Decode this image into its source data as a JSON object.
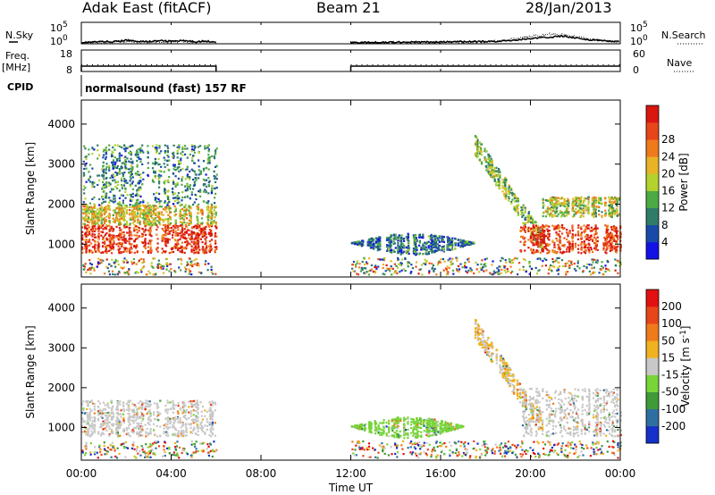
{
  "header": {
    "station": "Adak East (fitACF)",
    "beam": "Beam 21",
    "date": "28/Jan/2013"
  },
  "chart_data": [
    {
      "type": "line",
      "panel": "noise",
      "left_label": "N.Sky",
      "right_label": "N.Search",
      "left_ticks": [
        "10^5",
        "10^0"
      ],
      "right_ticks": [
        "10^5",
        "10^0"
      ],
      "ylim_log10": [
        0,
        5
      ],
      "x": [
        "00:00",
        "00:30",
        "01:00",
        "01:30",
        "02:00",
        "02:30",
        "03:00",
        "03:30",
        "04:00",
        "04:30",
        "05:00",
        "05:30",
        "06:00",
        "12:00",
        "13:00",
        "14:00",
        "15:00",
        "16:00",
        "17:00",
        "18:00",
        "19:00",
        "20:00",
        "20:30",
        "21:00",
        "21:30",
        "22:00",
        "22:30",
        "23:00",
        "23:30",
        "24:00"
      ],
      "series": [
        {
          "style": "solid",
          "values_log10": [
            0.3,
            0.4,
            0.5,
            0.5,
            0.8,
            0.6,
            0.5,
            0.7,
            0.6,
            0.7,
            0.5,
            0.6,
            0.5,
            0.3,
            0.3,
            0.4,
            0.4,
            0.4,
            0.5,
            0.5,
            0.7,
            1.2,
            1.4,
            1.6,
            1.8,
            1.4,
            1.0,
            0.8,
            0.6,
            0.5
          ]
        },
        {
          "style": "dotted",
          "values_log10": [
            0.2,
            0.3,
            0.3,
            0.3,
            0.6,
            0.4,
            0.3,
            0.5,
            0.4,
            0.5,
            0.3,
            0.4,
            0.3,
            0.2,
            0.2,
            0.3,
            0.3,
            0.3,
            0.3,
            0.4,
            0.9,
            1.7,
            2.0,
            2.3,
            2.0,
            1.6,
            1.2,
            0.8,
            0.5,
            0.4
          ]
        }
      ]
    },
    {
      "type": "line",
      "panel": "frequency",
      "left_label": "Freq.",
      "left_unit": "[MHz]",
      "right_label": "Nave",
      "left_ticks": [
        "18",
        "8"
      ],
      "right_ticks": [
        "60",
        "0"
      ],
      "ylim": [
        8,
        18
      ],
      "x_segments": [
        [
          "00:00",
          "06:00"
        ],
        [
          "12:00",
          "24:00"
        ]
      ],
      "freq_mhz": 10.5,
      "nave_dotted_value": 0
    },
    {
      "type": "table",
      "panel": "cpid",
      "label": "CPID",
      "text": "normalsound (fast) 157 RF"
    },
    {
      "type": "heatmap",
      "panel": "power",
      "ylabel": "Slant Range [km]",
      "yticks": [
        1000,
        2000,
        3000,
        4000
      ],
      "ylim": [
        180,
        4600
      ],
      "colorbar_label": "Power [dB]",
      "colorbar_ticks": [
        "4",
        "8",
        "12",
        "16",
        "20",
        "24",
        "28"
      ],
      "colorbar_colors": [
        "#1212e6",
        "#1a4aa8",
        "#2f7c68",
        "#4caa45",
        "#b3d22e",
        "#e8b426",
        "#ef7a1c",
        "#e8451b",
        "#d9160f"
      ],
      "clim": [
        0,
        32
      ],
      "data_gaps": [
        [
          "06:00",
          "12:00"
        ]
      ],
      "features": [
        {
          "name": "ground-scatter",
          "t": [
            0.0,
            6.0
          ],
          "range_km": [
            800,
            1500
          ],
          "power_db": 28
        },
        {
          "name": "near-range-echoes",
          "t": [
            0.0,
            6.0
          ],
          "range_km": [
            1500,
            2000
          ],
          "power_db": 18
        },
        {
          "name": "ionospheric-scatter",
          "t": [
            0.0,
            6.0
          ],
          "range_km": [
            2000,
            3500
          ],
          "power_db": 10
        },
        {
          "name": "tongue",
          "t": [
            12.0,
            17.5
          ],
          "range_km": [
            900,
            1200
          ],
          "power_db": 8
        },
        {
          "name": "dispersing-band",
          "t": [
            17.5,
            20.5
          ],
          "range_km": [
            3500,
            1100
          ],
          "power_db": 14
        },
        {
          "name": "ground-scatter-late",
          "t": [
            19.5,
            24.0
          ],
          "range_km": [
            800,
            1500
          ],
          "power_db": 28
        },
        {
          "name": "upper-band-late",
          "t": [
            20.5,
            24.0
          ],
          "range_km": [
            1700,
            2200
          ],
          "power_db": 16
        }
      ]
    },
    {
      "type": "heatmap",
      "panel": "velocity",
      "ylabel": "Slant Range [km]",
      "yticks": [
        1000,
        2000,
        3000,
        4000
      ],
      "ylim": [
        180,
        4600
      ],
      "colorbar_label": "Velocity [m s^-1]",
      "colorbar_ticks": [
        "200",
        "100",
        "50",
        "15",
        "-15",
        "-50",
        "-100",
        "-200"
      ],
      "colorbar_colors": [
        "#1531c9",
        "#2e6fa1",
        "#3f9a3a",
        "#79d43a",
        "#c8c8c8",
        "#f0b220",
        "#ef7a1c",
        "#e8451b",
        "#e21010"
      ],
      "clim": [
        -250,
        250
      ],
      "data_gaps": [
        [
          "06:00",
          "12:00"
        ]
      ],
      "features": [
        {
          "name": "ground-scatter",
          "t": [
            0.0,
            6.0
          ],
          "range_km": [
            800,
            1700
          ],
          "velocity": 0
        },
        {
          "name": "tongue",
          "t": [
            12.0,
            17.0
          ],
          "range_km": [
            900,
            1200
          ],
          "velocity": -40
        },
        {
          "name": "dispersing-band",
          "t": [
            17.5,
            20.5
          ],
          "range_km": [
            3500,
            1100
          ],
          "velocity": 30
        },
        {
          "name": "ground-scatter-late",
          "t": [
            19.5,
            24.0
          ],
          "range_km": [
            800,
            2000
          ],
          "velocity": 0
        }
      ]
    }
  ],
  "xaxis": {
    "ticks": [
      "00:00",
      "04:00",
      "08:00",
      "12:00",
      "16:00",
      "20:00",
      "00:00"
    ],
    "label": "Time UT"
  }
}
